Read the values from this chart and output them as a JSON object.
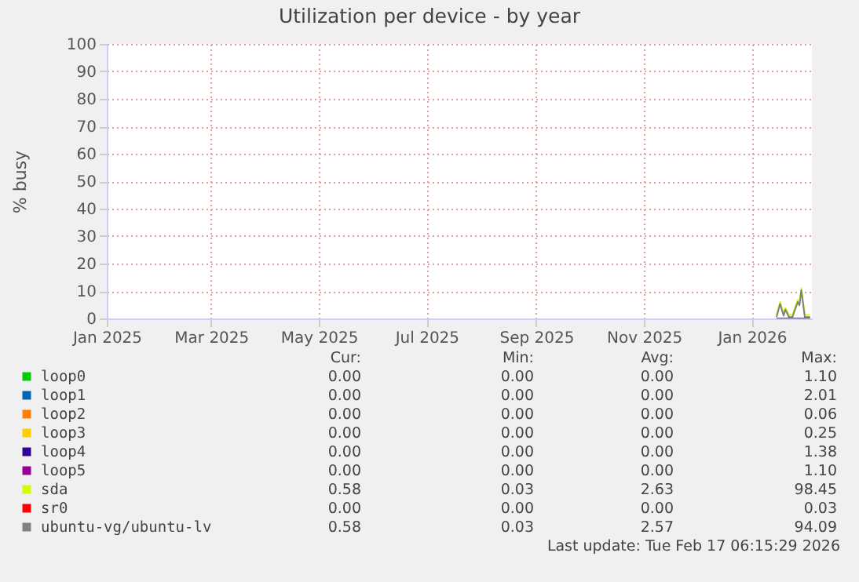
{
  "chart_data": {
    "type": "line",
    "title": "Utilization per device - by year",
    "ylabel": "% busy",
    "x": [
      "2026-01-15",
      "2026-01-17",
      "2026-01-19",
      "2026-01-20",
      "2026-01-22",
      "2026-01-24",
      "2026-01-27",
      "2026-01-28",
      "2026-01-29",
      "2026-01-31",
      "2026-02-03"
    ],
    "series": [
      {
        "name": "loop0",
        "color": "#00cc00",
        "values": [
          null,
          null,
          null,
          null,
          null,
          null,
          null,
          null,
          null,
          null,
          null
        ]
      },
      {
        "name": "loop1",
        "color": "#0066b3",
        "values": [
          null,
          null,
          null,
          null,
          null,
          null,
          null,
          null,
          null,
          null,
          null
        ]
      },
      {
        "name": "loop2",
        "color": "#ff8000",
        "values": [
          null,
          null,
          null,
          null,
          null,
          null,
          null,
          null,
          null,
          null,
          null
        ]
      },
      {
        "name": "loop3",
        "color": "#ffcc00",
        "values": [
          null,
          null,
          null,
          null,
          null,
          null,
          null,
          null,
          null,
          null,
          null
        ]
      },
      {
        "name": "loop4",
        "color": "#330099",
        "values": [
          null,
          null,
          null,
          null,
          null,
          null,
          null,
          null,
          null,
          null,
          null
        ]
      },
      {
        "name": "loop5",
        "color": "#990099",
        "values": [
          null,
          null,
          null,
          null,
          null,
          null,
          null,
          null,
          null,
          null,
          null
        ]
      },
      {
        "name": "sda",
        "color": "#ccff00",
        "values": [
          1.3,
          6,
          1.8,
          3.9,
          1.3,
          1.3,
          6.8,
          5.6,
          11,
          1.3,
          1.3
        ]
      },
      {
        "name": "sr0",
        "color": "#ff0000",
        "values": [
          0,
          0,
          0,
          0,
          0,
          0,
          0,
          0,
          0,
          0,
          0
        ]
      },
      {
        "name": "ubuntu-vg/ubuntu-lv",
        "color": "#808080",
        "values": [
          0.5,
          5.3,
          1,
          3.2,
          0.5,
          0.5,
          6,
          4.8,
          10.3,
          0.5,
          0.5
        ]
      }
    ],
    "xlim": [
      "2025-01-01",
      "2026-02-04"
    ],
    "xticks": [
      {
        "value": "2025-01-01",
        "label": "Jan 2025"
      },
      {
        "value": "2025-03-01",
        "label": "Mar 2025"
      },
      {
        "value": "2025-05-01",
        "label": "May 2025"
      },
      {
        "value": "2025-07-01",
        "label": "Jul 2025"
      },
      {
        "value": "2025-09-01",
        "label": "Sep 2025"
      },
      {
        "value": "2025-11-01",
        "label": "Nov 2025"
      },
      {
        "value": "2026-01-01",
        "label": "Jan 2026"
      }
    ],
    "ylim": [
      0,
      100
    ],
    "yticks": [
      0,
      10,
      20,
      30,
      40,
      50,
      60,
      70,
      80,
      90,
      100
    ],
    "grid": true,
    "legend": "bottom",
    "annotations": [
      "Cur: Min: Avg: Max:",
      "0.00 0.00 0.00 1.10",
      "0.00 0.00 0.00 2.01",
      "0.00 0.00 0.00 0.06",
      "0.00 0.00 0.00 0.25",
      "0.00 0.00 0.00 1.38",
      "0.00 0.00 0.00 1.10",
      "0.58 0.03 2.63 98.45",
      "0.00 0.00 0.00 0.03",
      "0.58 0.03 2.57 94.09",
      "Last update: Tue Feb 17 06:15:29 2026"
    ]
  }
}
